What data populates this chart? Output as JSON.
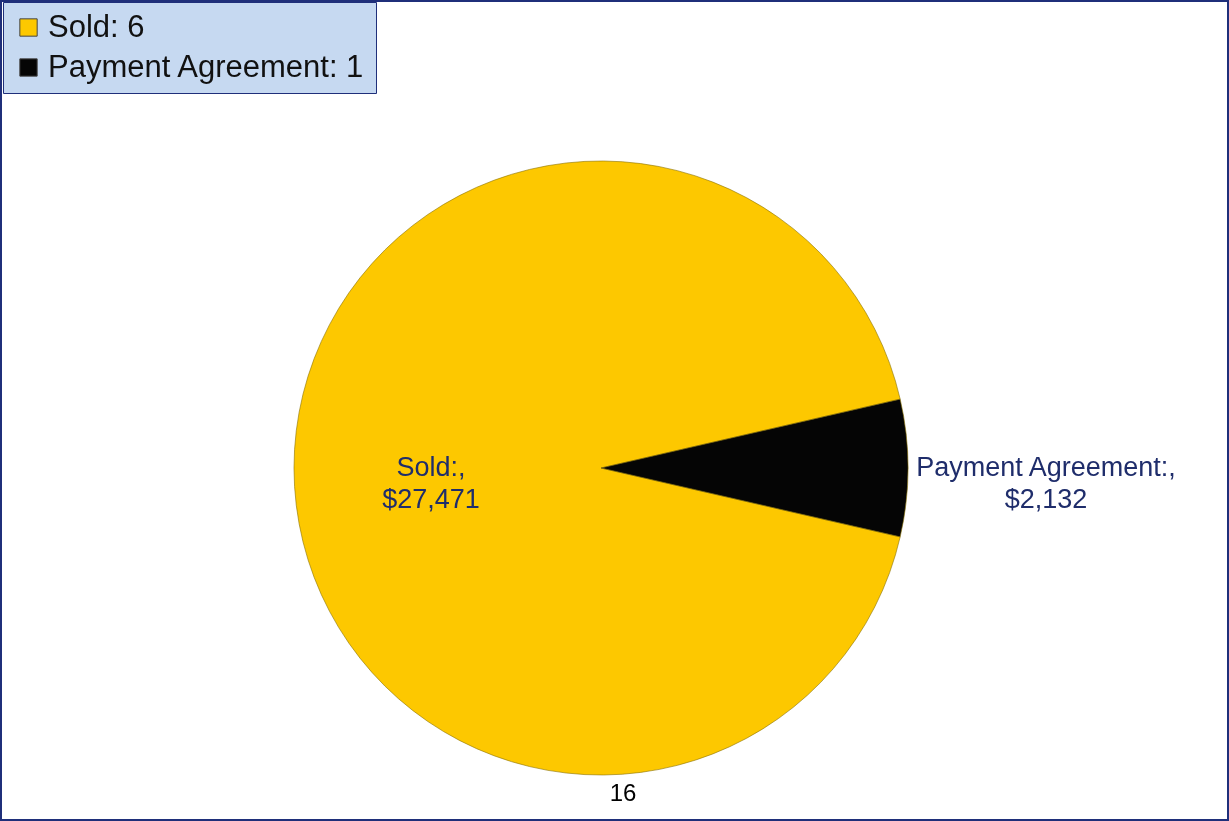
{
  "chart_data": {
    "type": "pie",
    "categories": [
      "Sold: 6",
      "Payment Agreement: 1"
    ],
    "values": [
      27471,
      2132
    ],
    "colors": [
      "#fdc800",
      "#050505"
    ],
    "value_labels": [
      "Sold:,\n$27,471",
      "Payment Agreement:,\n$2,132"
    ],
    "legend": "top left",
    "annotations": [
      "16"
    ]
  }
}
